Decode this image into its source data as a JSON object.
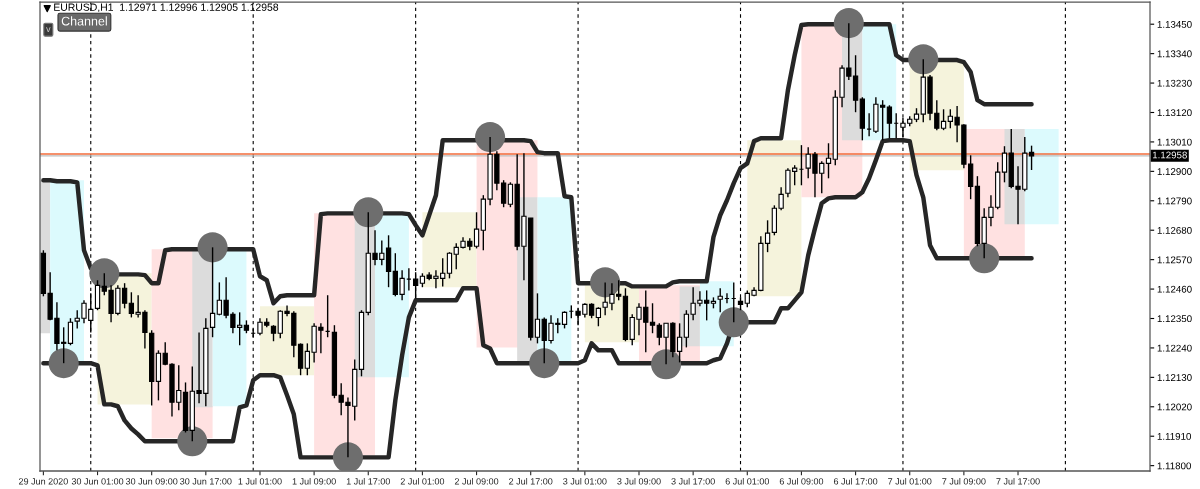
{
  "chart_data": {
    "type": "candlestick",
    "title": "EURUSD,H1  1.12971 1.12996 1.12905 1.12958",
    "categories": [
      "29 Jun 2020",
      null,
      null,
      null,
      null,
      null,
      null,
      null,
      "30 Jun 01:00",
      null,
      null,
      null,
      null,
      null,
      null,
      null,
      "30 Jun 09:00",
      null,
      null,
      null,
      null,
      null,
      null,
      null,
      "30 Jun 17:00",
      null,
      null,
      null,
      null,
      null,
      null,
      null,
      "1 Jul 01:00",
      null,
      null,
      null,
      null,
      null,
      null,
      null,
      "1 Jul 09:00",
      null,
      null,
      null,
      null,
      null,
      null,
      null,
      "1 Jul 17:00",
      null,
      null,
      null,
      null,
      null,
      null,
      null,
      "2 Jul 01:00",
      null,
      null,
      null,
      null,
      null,
      null,
      null,
      "2 Jul 09:00",
      null,
      null,
      null,
      null,
      null,
      null,
      null,
      "2 Jul 17:00",
      null,
      null,
      null,
      null,
      null,
      null,
      null,
      "3 Jul 01:00",
      null,
      null,
      null,
      null,
      null,
      null,
      null,
      "3 Jul 09:00",
      null,
      null,
      null,
      null,
      null,
      null,
      null,
      "3 Jul 17:00",
      null,
      null,
      null,
      null,
      null,
      null,
      null,
      "6 Jul 01:00",
      null,
      null,
      null,
      null,
      null,
      null,
      null,
      "6 Jul 09:00",
      null,
      null,
      null,
      null,
      null,
      null,
      null,
      "6 Jul 17:00",
      null,
      null,
      null,
      null,
      null,
      null,
      null,
      "7 Jul 01:00",
      null,
      null,
      null,
      null,
      null,
      null,
      null,
      "7 Jul 09:00",
      null,
      null,
      null,
      null,
      null,
      null,
      null,
      "7 Jul 17:00",
      null,
      null,
      null,
      null,
      null,
      null,
      null,
      null,
      null,
      null,
      null,
      null,
      null,
      null,
      null,
      null,
      null,
      null,
      null
    ],
    "ohlc": [
      [
        1.12594,
        1.12605,
        1.12433,
        1.12444
      ],
      [
        1.12444,
        1.12523,
        1.12343,
        1.12347
      ],
      [
        1.12351,
        1.12411,
        1.12231,
        1.12257
      ],
      [
        1.12257,
        1.12317,
        1.12183,
        1.12261
      ],
      [
        1.12257,
        1.12351,
        1.1225,
        1.12336
      ],
      [
        1.1234,
        1.12381,
        1.12313,
        1.12351
      ],
      [
        1.12351,
        1.12418,
        1.12332,
        1.12407
      ],
      [
        1.12343,
        1.12444,
        1.12298,
        1.12384
      ],
      [
        1.12388,
        1.12493,
        1.12381,
        1.12474
      ],
      [
        1.1247,
        1.12519,
        1.12437,
        1.12452
      ],
      [
        1.12455,
        1.12474,
        1.12336,
        1.12369
      ],
      [
        1.12369,
        1.12474,
        1.12362,
        1.12463
      ],
      [
        1.12463,
        1.12482,
        1.12388,
        1.12407
      ],
      [
        1.12407,
        1.12448,
        1.12354,
        1.12369
      ],
      [
        1.12366,
        1.12437,
        1.12354,
        1.12373
      ],
      [
        1.12373,
        1.12381,
        1.12238,
        1.12298
      ],
      [
        1.12295,
        1.12306,
        1.12025,
        1.12115
      ],
      [
        1.12115,
        1.12231,
        1.12044,
        1.1222
      ],
      [
        1.1222,
        1.12261,
        1.12175,
        1.12179
      ],
      [
        1.12179,
        1.12183,
        1.11984,
        1.12037
      ],
      [
        1.12037,
        1.12175,
        1.12007,
        1.12081
      ],
      [
        1.12074,
        1.12111,
        1.11924,
        1.11932
      ],
      [
        1.11932,
        1.12171,
        1.11891,
        1.12078
      ],
      [
        1.12081,
        1.12298,
        1.12033,
        1.1207
      ],
      [
        1.1207,
        1.12351,
        1.12022,
        1.12313
      ],
      [
        1.12317,
        1.12616,
        1.1228,
        1.12369
      ],
      [
        1.12366,
        1.12485,
        1.12362,
        1.12418
      ],
      [
        1.12418,
        1.12504,
        1.12351,
        1.12362
      ],
      [
        1.12366,
        1.12373,
        1.12295,
        1.12317
      ],
      [
        1.12317,
        1.12373,
        1.1225,
        1.12325
      ],
      [
        1.12325,
        1.12343,
        1.12295,
        1.12306
      ],
      [
        1.12295,
        1.12313,
        1.1228,
        1.12295
      ],
      [
        1.12295,
        1.12351,
        1.12287,
        1.12336
      ],
      [
        1.12336,
        1.12351,
        1.12317,
        1.12325
      ],
      [
        1.12321,
        1.12325,
        1.12265,
        1.12295
      ],
      [
        1.12295,
        1.12381,
        1.12276,
        1.12377
      ],
      [
        1.12377,
        1.12399,
        1.12358,
        1.12369
      ],
      [
        1.12369,
        1.12377,
        1.12205,
        1.1225
      ],
      [
        1.12254,
        1.12257,
        1.12138,
        1.12164
      ],
      [
        1.12164,
        1.12257,
        1.12138,
        1.12227
      ],
      [
        1.12224,
        1.12332,
        1.12186,
        1.12321
      ],
      [
        1.12317,
        1.12332,
        1.1222,
        1.12306
      ],
      [
        1.12302,
        1.12437,
        1.1228,
        1.12302
      ],
      [
        1.12298,
        1.12325,
        1.12052,
        1.12063
      ],
      [
        1.12063,
        1.12108,
        1.11988,
        1.12037
      ],
      [
        1.12037,
        1.12055,
        1.11831,
        1.12025
      ],
      [
        1.12022,
        1.12197,
        1.11969,
        1.1216
      ],
      [
        1.1216,
        1.12381,
        1.12134,
        1.12373
      ],
      [
        1.12373,
        1.12747,
        1.12362,
        1.12594
      ],
      [
        1.12594,
        1.1268,
        1.12549,
        1.12571
      ],
      [
        1.12571,
        1.12642,
        1.12549,
        1.12594
      ],
      [
        1.12613,
        1.12661,
        1.12467,
        1.12526
      ],
      [
        1.12526,
        1.12594,
        1.12433,
        1.1244
      ],
      [
        1.1244,
        1.1253,
        1.12418,
        1.125
      ],
      [
        1.12497,
        1.12538,
        1.12455,
        1.12497
      ],
      [
        1.12497,
        1.12523,
        1.12425,
        1.12474
      ],
      [
        1.12482,
        1.12519,
        1.12467,
        1.12508
      ],
      [
        1.12512,
        1.12523,
        1.12493,
        1.125
      ],
      [
        1.125,
        1.1253,
        1.12463,
        1.12508
      ],
      [
        1.125,
        1.12575,
        1.1247,
        1.12519
      ],
      [
        1.12519,
        1.12598,
        1.125,
        1.12594
      ],
      [
        1.1259,
        1.12631,
        1.12534,
        1.12616
      ],
      [
        1.12616,
        1.12654,
        1.12612,
        1.12639
      ],
      [
        1.12639,
        1.1265,
        1.12605,
        1.1262
      ],
      [
        1.1262,
        1.12747,
        1.12612,
        1.12684
      ],
      [
        1.1268,
        1.12811,
        1.12605,
        1.12796
      ],
      [
        1.12796,
        1.13028,
        1.12773,
        1.12964
      ],
      [
        1.12964,
        1.12975,
        1.12829,
        1.12856
      ],
      [
        1.12856,
        1.12867,
        1.12766,
        1.12781
      ],
      [
        1.12777,
        1.12859,
        1.12766,
        1.12852
      ],
      [
        1.12852,
        1.12964,
        1.12605,
        1.1262
      ],
      [
        1.1262,
        1.12968,
        1.12493,
        1.12732
      ],
      [
        1.12725,
        1.12725,
        1.12268,
        1.1228
      ],
      [
        1.1228,
        1.12444,
        1.12257,
        1.12347
      ],
      [
        1.12347,
        1.12354,
        1.12183,
        1.12268
      ],
      [
        1.12268,
        1.12362,
        1.12257,
        1.12332
      ],
      [
        1.12328,
        1.12351,
        1.12295,
        1.12332
      ],
      [
        1.12328,
        1.12377,
        1.12313,
        1.12373
      ],
      [
        1.12377,
        1.12399,
        1.12351,
        1.12377
      ],
      [
        1.12377,
        1.12388,
        1.12325,
        1.12362
      ],
      [
        1.12366,
        1.12407,
        1.12354,
        1.12403
      ],
      [
        1.12403,
        1.12407,
        1.12351,
        1.12362
      ],
      [
        1.12354,
        1.12392,
        1.12321,
        1.12388
      ],
      [
        1.12392,
        1.12485,
        1.12362,
        1.12411
      ],
      [
        1.12407,
        1.12482,
        1.12381,
        1.1244
      ],
      [
        1.1244,
        1.12493,
        1.12418,
        1.12433
      ],
      [
        1.12433,
        1.12463,
        1.12265,
        1.12272
      ],
      [
        1.12272,
        1.12366,
        1.1225,
        1.12354
      ],
      [
        1.12347,
        1.12407,
        1.12287,
        1.12392
      ],
      [
        1.12392,
        1.12455,
        1.12224,
        1.12336
      ],
      [
        1.12336,
        1.12407,
        1.12295,
        1.12325
      ],
      [
        1.12325,
        1.12332,
        1.1225,
        1.1228
      ],
      [
        1.1228,
        1.12332,
        1.12179,
        1.12332
      ],
      [
        1.12332,
        1.12336,
        1.12205,
        1.12227
      ],
      [
        1.12227,
        1.12332,
        1.12186,
        1.1228
      ],
      [
        1.1228,
        1.12381,
        1.12242,
        1.12366
      ],
      [
        1.12366,
        1.12467,
        1.12343,
        1.12407
      ],
      [
        1.12407,
        1.12452,
        1.12396,
        1.12418
      ],
      [
        1.12418,
        1.12455,
        1.12343,
        1.12407
      ],
      [
        1.12407,
        1.12429,
        1.12388,
        1.12414
      ],
      [
        1.12422,
        1.12463,
        1.12373,
        1.12433
      ],
      [
        1.12425,
        1.12444,
        1.12407,
        1.12425
      ],
      [
        1.12425,
        1.12485,
        1.12336,
        1.12425
      ],
      [
        1.12414,
        1.12429,
        1.12381,
        1.12403
      ],
      [
        1.12407,
        1.12455,
        1.12392,
        1.12444
      ],
      [
        1.12437,
        1.12467,
        1.12433,
        1.12455
      ],
      [
        1.12455,
        1.12657,
        1.12452,
        1.12631
      ],
      [
        1.12631,
        1.12717,
        1.12598,
        1.12669
      ],
      [
        1.12672,
        1.12773,
        1.12661,
        1.12762
      ],
      [
        1.12762,
        1.12841,
        1.12755,
        1.12814
      ],
      [
        1.12818,
        1.12912,
        1.12803,
        1.12904
      ],
      [
        1.129,
        1.12923,
        1.12848,
        1.12912
      ],
      [
        1.12908,
        1.12998,
        1.12848,
        1.12908
      ],
      [
        1.12912,
        1.1299,
        1.12874,
        1.12964
      ],
      [
        1.12964,
        1.12972,
        1.12803,
        1.12893
      ],
      [
        1.12893,
        1.12938,
        1.12818,
        1.1293
      ],
      [
        1.1293,
        1.13005,
        1.12874,
        1.12949
      ],
      [
        1.12945,
        1.13203,
        1.12923,
        1.13177
      ],
      [
        1.13177,
        1.13297,
        1.1314,
        1.13286
      ],
      [
        1.13286,
        1.13454,
        1.13241,
        1.13256
      ],
      [
        1.13256,
        1.13334,
        1.13121,
        1.13166
      ],
      [
        1.1317,
        1.13177,
        1.13016,
        1.13061
      ],
      [
        1.13058,
        1.13117,
        1.13031,
        1.13058
      ],
      [
        1.1305,
        1.13177,
        1.13043,
        1.13151
      ],
      [
        1.13147,
        1.13166,
        1.13016,
        1.1314
      ],
      [
        1.1314,
        1.13147,
        1.13024,
        1.1308
      ],
      [
        1.1308,
        1.13117,
        1.13024,
        1.1308
      ],
      [
        1.13065,
        1.13099,
        1.13028,
        1.1308
      ],
      [
        1.1308,
        1.13106,
        1.13069,
        1.13095
      ],
      [
        1.13095,
        1.13136,
        1.13084,
        1.13114
      ],
      [
        1.13114,
        1.13319,
        1.13084,
        1.13252
      ],
      [
        1.13252,
        1.1326,
        1.13091,
        1.13117
      ],
      [
        1.13117,
        1.13166,
        1.13054,
        1.13061
      ],
      [
        1.13061,
        1.13132,
        1.13054,
        1.13087
      ],
      [
        1.13087,
        1.13132,
        1.13061,
        1.13106
      ],
      [
        1.13102,
        1.13144,
        1.13009,
        1.13073
      ],
      [
        1.13073,
        1.13076,
        1.12912,
        1.12927
      ],
      [
        1.12927,
        1.1296,
        1.12796,
        1.12844
      ],
      [
        1.12844,
        1.12882,
        1.1262,
        1.12631
      ],
      [
        1.12631,
        1.12762,
        1.12575,
        1.12728
      ],
      [
        1.12728,
        1.12811,
        1.12695,
        1.12766
      ],
      [
        1.12766,
        1.12934,
        1.12758,
        1.12897
      ],
      [
        1.12897,
        1.12994,
        1.12859,
        1.12968
      ],
      [
        1.12968,
        1.13058,
        1.12837,
        1.12844
      ],
      [
        1.12844,
        1.12919,
        1.12702,
        1.12833
      ],
      [
        1.12833,
        1.13028,
        1.12826,
        1.12968
      ],
      [
        1.12971,
        1.12996,
        1.12905,
        1.12958
      ],
      null,
      null,
      null,
      null,
      null,
      null,
      null,
      null,
      null,
      null,
      null,
      null,
      null,
      null,
      null,
      null,
      null
    ],
    "series": [
      {
        "type": "line",
        "color": "#262626",
        "values": [
          1.12867,
          1.12867,
          1.12863,
          1.12863,
          1.12863,
          1.12859,
          1.12605,
          1.12538,
          1.12515,
          1.12515,
          1.12515,
          1.12515,
          1.12515,
          1.12515,
          1.12515,
          1.12512,
          1.12482,
          1.12482,
          1.12605,
          1.12609,
          1.12609,
          1.12609,
          1.12609,
          1.12609,
          1.12609,
          1.12609,
          1.12609,
          1.12609,
          1.12609,
          1.12609,
          1.12609,
          1.12609,
          1.12508,
          1.12493,
          1.12407,
          1.12433,
          1.12437,
          1.12437,
          1.12437,
          1.12437,
          1.12437,
          1.1274,
          1.12743,
          1.12743,
          1.12743,
          1.12743,
          1.12743,
          1.12743,
          1.12743,
          1.12743,
          1.12743,
          1.12743,
          1.12743,
          1.12743,
          1.1274,
          1.12699,
          1.12661,
          1.12736,
          1.12811,
          1.13016,
          1.13016,
          1.13016,
          1.13016,
          1.13016,
          1.13016,
          1.13016,
          1.13016,
          1.13016,
          1.13016,
          1.13016,
          1.13016,
          1.13016,
          1.13013,
          1.12972,
          1.12968,
          1.12968,
          1.12968,
          1.12807,
          1.12803,
          1.12482,
          1.12482,
          1.12482,
          1.12482,
          1.12482,
          1.12482,
          1.12482,
          1.12482,
          1.1247,
          1.1247,
          1.1247,
          1.1247,
          1.1247,
          1.1247,
          1.12485,
          1.12489,
          1.12489,
          1.12489,
          1.12489,
          1.12489,
          1.12654,
          1.12736,
          1.12792,
          1.12856,
          1.12912,
          1.1293,
          1.13013,
          1.13024,
          1.13024,
          1.13024,
          1.13024,
          1.13203,
          1.13334,
          1.13447,
          1.1345,
          1.1345,
          1.1345,
          1.1345,
          1.1345,
          1.1345,
          1.1345,
          1.1345,
          1.1345,
          1.1345,
          1.1345,
          1.1345,
          1.1345,
          1.13334,
          1.13316,
          1.13316,
          1.13316,
          1.13316,
          1.13316,
          1.13316,
          1.13316,
          1.13316,
          1.13316,
          1.13308,
          1.13271,
          1.13166,
          1.13151,
          1.13151,
          1.13151,
          1.13151,
          1.13151,
          1.13151,
          1.13151,
          1.13151,
          null,
          null,
          null,
          null,
          null,
          null,
          null,
          null,
          null,
          null,
          null,
          null,
          null,
          null,
          null,
          null,
          null
        ]
      },
      {
        "type": "line",
        "color": "#262626",
        "values": [
          1.12183,
          1.12183,
          1.12183,
          1.12183,
          1.12183,
          1.12183,
          1.12183,
          1.12183,
          1.12175,
          1.12029,
          1.12029,
          1.12022,
          1.11969,
          1.11939,
          1.11917,
          1.11891,
          1.11891,
          1.11891,
          1.11891,
          1.11891,
          1.11891,
          1.11891,
          1.11891,
          1.11891,
          1.11891,
          1.11891,
          1.11891,
          1.11891,
          1.11891,
          1.12018,
          1.12025,
          1.12119,
          1.12138,
          1.12138,
          1.12138,
          1.1213,
          1.12063,
          1.11992,
          1.11831,
          1.11831,
          1.11831,
          1.11831,
          1.11831,
          1.11831,
          1.11831,
          1.11831,
          1.11831,
          1.11831,
          1.11831,
          1.11831,
          1.11831,
          1.11831,
          1.12044,
          1.12212,
          1.12354,
          1.12418,
          1.12418,
          1.12418,
          1.12418,
          1.12418,
          1.12418,
          1.12418,
          1.12463,
          1.12463,
          1.12463,
          1.1225,
          1.12238,
          1.12183,
          1.12183,
          1.12183,
          1.12183,
          1.12183,
          1.12183,
          1.12183,
          1.12183,
          1.12183,
          1.12183,
          1.12183,
          1.12183,
          1.12183,
          1.12194,
          1.12257,
          1.12231,
          1.12231,
          1.12231,
          1.12183,
          1.12183,
          1.12183,
          1.12183,
          1.12183,
          1.12183,
          1.12183,
          1.12183,
          1.12183,
          1.12183,
          1.12183,
          1.12183,
          1.12183,
          1.12183,
          1.12194,
          1.12201,
          1.12257,
          1.12336,
          1.12336,
          1.12336,
          1.12336,
          1.12336,
          1.12336,
          1.12336,
          1.12388,
          1.12388,
          1.12418,
          1.12448,
          1.12586,
          1.12687,
          1.12781,
          1.12799,
          1.12803,
          1.12803,
          1.12803,
          1.12803,
          1.12822,
          1.12874,
          1.12942,
          1.13013,
          1.13016,
          1.13016,
          1.13016,
          1.13013,
          1.12886,
          1.12803,
          1.12624,
          1.12575,
          1.12575,
          1.12575,
          1.12575,
          1.12575,
          1.12575,
          1.12575,
          1.12575,
          1.12575,
          1.12575,
          1.12575,
          1.12575,
          1.12575,
          1.12575,
          1.12575,
          null,
          null,
          null,
          null,
          null,
          null,
          null,
          null,
          null,
          null,
          null,
          null,
          null,
          null,
          null,
          null,
          null
        ]
      },
      {
        "type": "scatter",
        "color": "#6e6e6e",
        "marker": "circle",
        "values": [
          null,
          null,
          null,
          1.12183,
          null,
          null,
          null,
          null,
          null,
          1.12519,
          null,
          null,
          null,
          null,
          null,
          null,
          null,
          null,
          null,
          null,
          null,
          null,
          1.11891,
          null,
          null,
          1.12616,
          null,
          null,
          null,
          null,
          null,
          null,
          null,
          null,
          null,
          null,
          null,
          null,
          null,
          null,
          null,
          null,
          null,
          null,
          null,
          1.11831,
          null,
          null,
          1.12747,
          null,
          null,
          null,
          null,
          null,
          null,
          null,
          null,
          null,
          null,
          null,
          null,
          null,
          null,
          null,
          null,
          null,
          1.13028,
          null,
          null,
          null,
          null,
          null,
          null,
          null,
          1.12183,
          null,
          null,
          null,
          null,
          null,
          null,
          null,
          null,
          1.12485,
          null,
          null,
          null,
          null,
          null,
          null,
          null,
          null,
          1.12179,
          null,
          null,
          null,
          null,
          null,
          null,
          null,
          null,
          null,
          1.12336,
          null,
          null,
          null,
          null,
          null,
          null,
          null,
          null,
          null,
          null,
          null,
          null,
          null,
          null,
          null,
          null,
          1.13454,
          null,
          null,
          null,
          null,
          null,
          null,
          null,
          null,
          null,
          null,
          1.13319,
          null,
          null,
          null,
          null,
          null,
          null,
          null,
          null,
          1.12575,
          null,
          null,
          null,
          null,
          null,
          null,
          null,
          null,
          null,
          null,
          null,
          null,
          null,
          null,
          null,
          null,
          null,
          null,
          null,
          null,
          null,
          null,
          null,
          null
        ]
      }
    ],
    "ylim": [
      1.1178,
      1.13533
    ],
    "yticks": [
      {
        "value": 1.118,
        "label": "1.11800"
      },
      {
        "value": 1.1191,
        "label": "1.11910"
      },
      {
        "value": 1.1202,
        "label": "1.12020"
      },
      {
        "value": 1.1213,
        "label": "1.12130"
      },
      {
        "value": 1.1224,
        "label": "1.12240"
      },
      {
        "value": 1.1235,
        "label": "1.12350"
      },
      {
        "value": 1.1246,
        "label": "1.12460"
      },
      {
        "value": 1.1257,
        "label": "1.12570"
      },
      {
        "value": 1.1268,
        "label": "1.12680"
      },
      {
        "value": 1.1279,
        "label": "1.12790"
      },
      {
        "value": 1.129,
        "label": "1.12900"
      },
      {
        "value": 1.1301,
        "label": "1.13010"
      },
      {
        "value": 1.1312,
        "label": "1.13120"
      },
      {
        "value": 1.1323,
        "label": "1.13230"
      },
      {
        "value": 1.1334,
        "label": "1.13340"
      },
      {
        "value": 1.1345,
        "label": "1.13450"
      }
    ],
    "ref_lines": [
      {
        "axis": "y",
        "value": 1.12965,
        "color": "#f26b3a",
        "line_style": "solid"
      },
      {
        "axis": "y",
        "value": 1.12958,
        "color": "#bdbdbd",
        "line_style": "solid",
        "label": "1.12958"
      }
    ],
    "annotations": [
      "v",
      "Channel"
    ],
    "grid": false,
    "legend": false
  }
}
